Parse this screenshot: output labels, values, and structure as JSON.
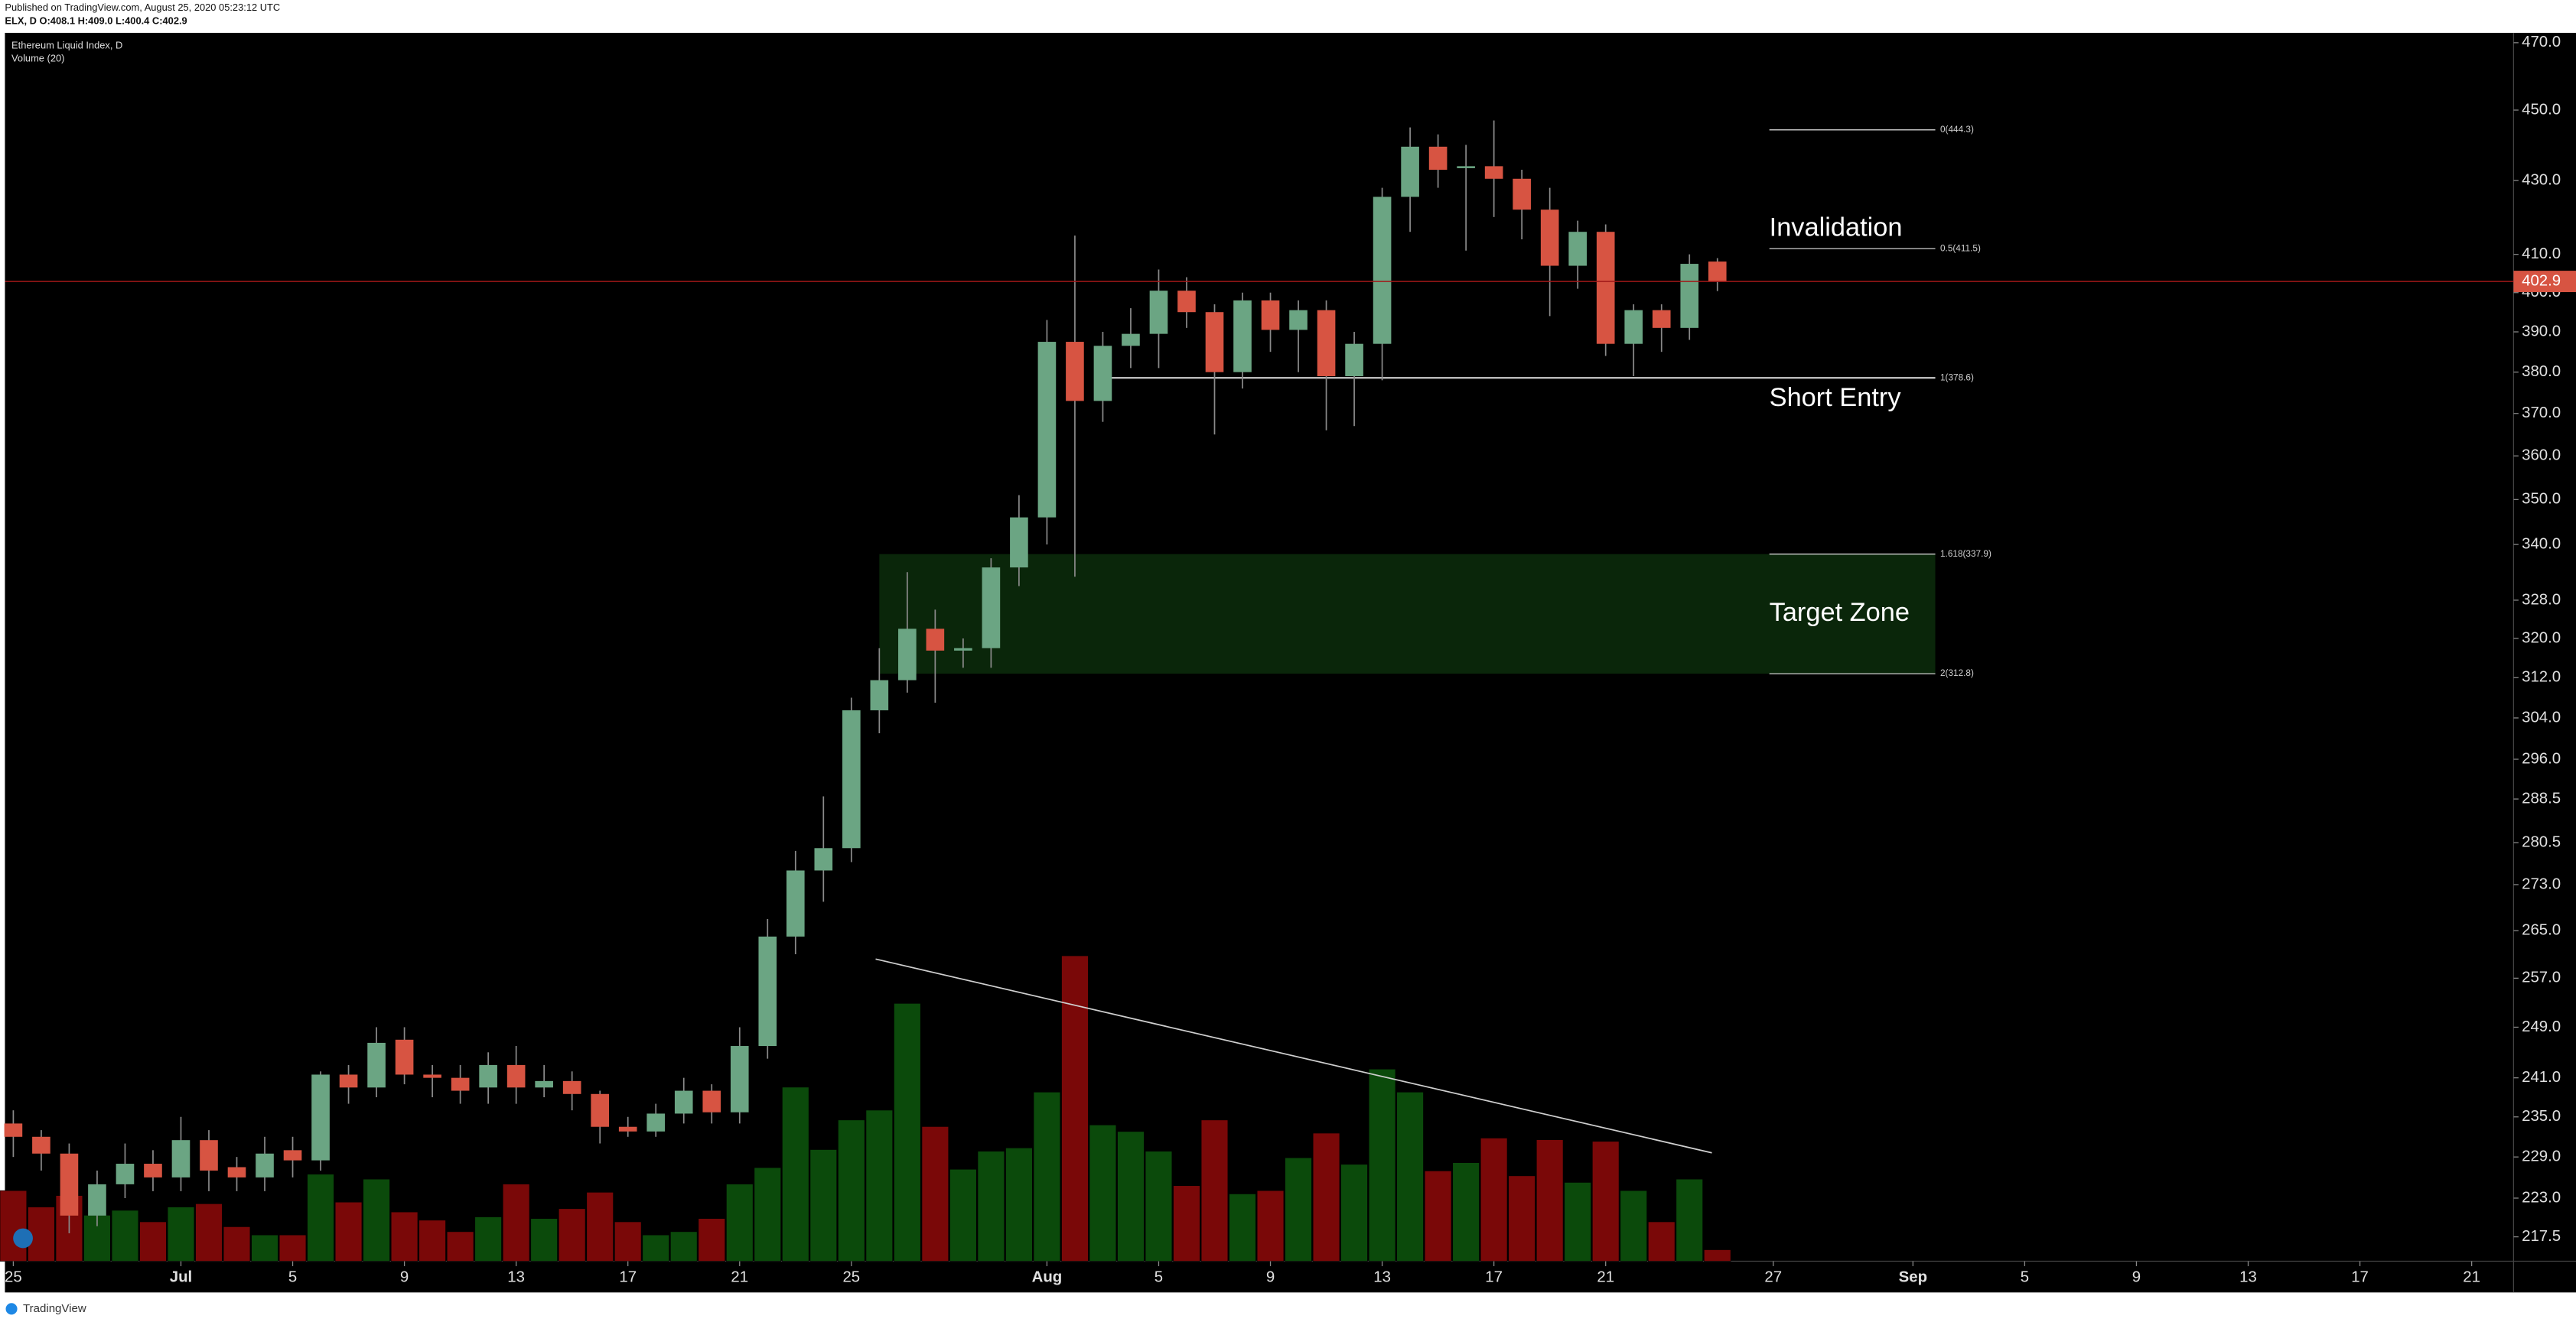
{
  "header": {
    "published": "Published on TradingView.com, August 25, 2020 05:23:12 UTC",
    "ohlc": "ELX, D  O:408.1 H:409.0 L:400.4 C:402.9",
    "brand": "TradingView"
  },
  "chart_data": {
    "type": "candlestick",
    "title": "Ethereum Liquid Index, D",
    "volume_title": "Volume (20)",
    "log_scale": true,
    "grid": false,
    "up_color": "#6ba583",
    "down_color": "#d75442",
    "volume_up_color": "#0b4a0b",
    "volume_down_color": "#7a0808",
    "x": [
      0,
      1,
      2,
      3,
      4,
      5,
      6,
      7,
      8,
      9,
      10,
      11,
      12,
      13,
      14,
      15,
      16,
      17,
      18,
      19,
      20,
      21,
      22,
      23,
      24,
      25,
      26,
      27,
      28,
      29,
      30,
      31,
      32,
      33,
      34,
      35,
      36,
      37,
      38,
      39,
      40,
      41,
      42,
      43,
      44,
      45,
      46,
      47,
      48,
      49,
      50,
      51,
      52,
      53,
      54,
      55,
      56,
      57,
      58,
      59,
      60,
      61
    ],
    "open": [
      234,
      232,
      229.5,
      220.5,
      225,
      228,
      226,
      231.5,
      227.5,
      226,
      230,
      228.5,
      241.5,
      239.5,
      247,
      241.5,
      241,
      239.5,
      243,
      239.5,
      240.5,
      238.5,
      233.5,
      232.8,
      235.5,
      239,
      235.7,
      246,
      264,
      275.5,
      279.5,
      305.5,
      311.5,
      322,
      317.5,
      318,
      335,
      346,
      387.5,
      373,
      386.5,
      389.5,
      400.5,
      395,
      380,
      398,
      390.5,
      395.5,
      379,
      387,
      425.5,
      439.5,
      433.5,
      434,
      430.5,
      422,
      407,
      416,
      387,
      395.5,
      391,
      408.1
    ],
    "high": [
      236,
      233,
      231,
      227,
      231,
      230,
      235,
      233,
      229,
      232,
      232,
      242,
      243,
      249,
      249,
      243,
      243,
      245,
      246,
      243,
      242,
      239,
      235,
      237,
      241,
      240,
      249,
      267,
      279,
      289,
      308,
      318,
      334,
      326,
      320,
      337,
      351,
      393,
      415,
      390,
      396,
      406,
      404,
      397,
      400,
      400,
      398,
      398,
      390,
      428,
      445,
      443,
      440,
      447,
      433,
      428,
      419,
      418,
      397,
      397,
      410,
      409
    ],
    "low": [
      229,
      227,
      218,
      219,
      223,
      224,
      224,
      224,
      224,
      224,
      226,
      227,
      237,
      238,
      240,
      238,
      237,
      237,
      237,
      238,
      236,
      231,
      232,
      232,
      234,
      234,
      234,
      244,
      261,
      270,
      277,
      301,
      309,
      307,
      314,
      314,
      331,
      340,
      333,
      368,
      381,
      381,
      391,
      365,
      376,
      385,
      380,
      366,
      367,
      378,
      416,
      428,
      411,
      420,
      414,
      394,
      401,
      384,
      379,
      385,
      388,
      400.4
    ],
    "close": [
      232,
      229.5,
      220.5,
      225,
      228,
      226,
      231.5,
      227,
      226,
      229.5,
      228.5,
      241.5,
      239.5,
      246.5,
      241.5,
      241,
      239,
      243,
      239.5,
      240.5,
      238.5,
      233.5,
      232.8,
      235.5,
      239,
      235.7,
      246,
      264,
      275.5,
      279.5,
      305.5,
      311.5,
      322,
      317.5,
      318,
      335,
      346,
      387.5,
      373,
      386.5,
      389.5,
      400.5,
      395,
      380,
      398,
      390.5,
      395.5,
      379,
      387,
      425.5,
      439.5,
      433,
      434,
      430.5,
      422,
      407,
      416,
      387,
      395.5,
      391,
      407.5,
      402.9
    ],
    "volume": [
      43,
      33,
      40,
      28,
      31,
      24,
      33,
      35,
      21,
      16,
      16,
      53,
      36,
      50,
      30,
      25,
      18,
      27,
      47,
      26,
      32,
      42,
      24,
      16,
      18,
      26,
      47,
      57,
      106,
      68,
      86,
      92,
      157,
      82,
      56,
      67,
      69,
      103,
      186,
      83,
      79,
      67,
      46,
      86,
      41,
      43,
      63,
      78,
      59,
      117,
      103,
      55,
      60,
      75,
      52,
      74,
      48,
      73,
      43,
      24,
      50,
      7
    ],
    "xlim": [
      -0.3,
      89.5
    ],
    "ylim": [
      214.1,
      473
    ],
    "xticks": [
      {
        "value": 0,
        "label": "25"
      },
      {
        "value": 6,
        "label": "Jul"
      },
      {
        "value": 10,
        "label": "5"
      },
      {
        "value": 14,
        "label": "9"
      },
      {
        "value": 18,
        "label": "13"
      },
      {
        "value": 22,
        "label": "17"
      },
      {
        "value": 26,
        "label": "21"
      },
      {
        "value": 30,
        "label": "25"
      },
      {
        "value": 37,
        "label": "Aug"
      },
      {
        "value": 41,
        "label": "5"
      },
      {
        "value": 45,
        "label": "9"
      },
      {
        "value": 49,
        "label": "13"
      },
      {
        "value": 53,
        "label": "17"
      },
      {
        "value": 57,
        "label": "21"
      },
      {
        "value": 63,
        "label": "27"
      },
      {
        "value": 68,
        "label": "Sep"
      },
      {
        "value": 72,
        "label": "5"
      },
      {
        "value": 76,
        "label": "9"
      },
      {
        "value": 80,
        "label": "13"
      },
      {
        "value": 84,
        "label": "17"
      },
      {
        "value": 88,
        "label": "21"
      }
    ],
    "yticks": [
      {
        "value": 470,
        "label": "470.0"
      },
      {
        "value": 450,
        "label": "450.0"
      },
      {
        "value": 430,
        "label": "430.0"
      },
      {
        "value": 410,
        "label": "410.0"
      },
      {
        "value": 400,
        "label": "400.0"
      },
      {
        "value": 390,
        "label": "390.0"
      },
      {
        "value": 380,
        "label": "380.0"
      },
      {
        "value": 370,
        "label": "370.0"
      },
      {
        "value": 360,
        "label": "360.0"
      },
      {
        "value": 350,
        "label": "350.0"
      },
      {
        "value": 340,
        "label": "340.0"
      },
      {
        "value": 328,
        "label": "328.0"
      },
      {
        "value": 320,
        "label": "320.0"
      },
      {
        "value": 312,
        "label": "312.0"
      },
      {
        "value": 304,
        "label": "304.0"
      },
      {
        "value": 296,
        "label": "296.0"
      },
      288.5,
      280.5,
      {
        "value": 273,
        "label": "273.0"
      },
      {
        "value": 265,
        "label": "265.0"
      },
      {
        "value": 257,
        "label": "257.0"
      },
      {
        "value": 249,
        "label": "249.0"
      },
      {
        "value": 241,
        "label": "241.0"
      },
      {
        "value": 235,
        "label": "235.0"
      },
      {
        "value": 229,
        "label": "229.0"
      },
      {
        "value": 223,
        "label": "223.0"
      },
      217.5
    ],
    "fib_levels": [
      {
        "label": "0(444.3)",
        "value": 444.3
      },
      {
        "label": "0.5(411.5)",
        "value": 411.5
      },
      {
        "label": "1(378.6)",
        "value": 378.6
      },
      {
        "label": "1.618(337.9)",
        "value": 337.9
      },
      {
        "label": "2(312.8)",
        "value": 312.8
      }
    ],
    "annotations": [
      "Invalidation",
      "Short Entry",
      "Target Zone"
    ]
  }
}
